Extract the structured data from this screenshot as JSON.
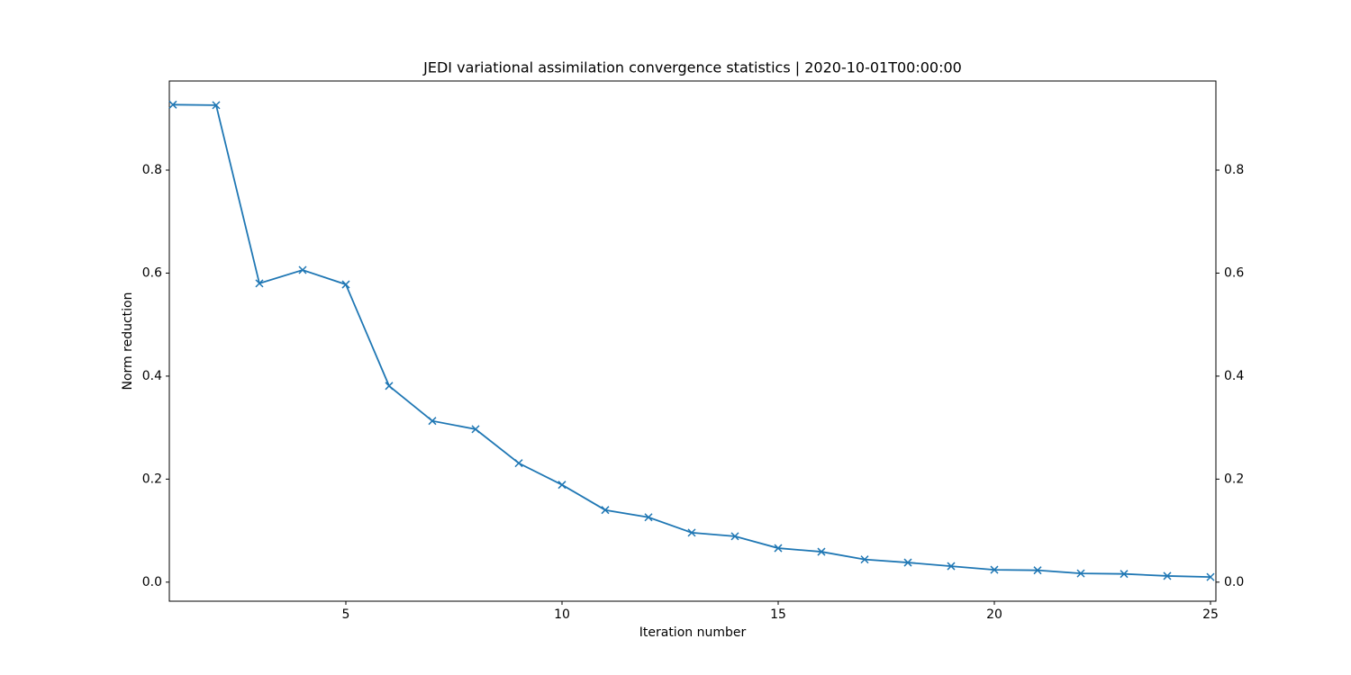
{
  "chart_data": {
    "type": "line",
    "title": "JEDI variational assimilation convergence statistics | 2020-10-01T00:00:00",
    "x_label": "Iteration number",
    "y_label": "Norm reduction",
    "x": [
      1,
      2,
      3,
      4,
      5,
      6,
      7,
      8,
      9,
      10,
      11,
      12,
      13,
      14,
      15,
      16,
      17,
      18,
      19,
      20,
      21,
      22,
      23,
      24,
      25
    ],
    "series": [
      {
        "color": "#1f77b4",
        "marker": "x",
        "values": [
          0.927,
          0.926,
          0.58,
          0.606,
          0.578,
          0.381,
          0.313,
          0.297,
          0.231,
          0.189,
          0.14,
          0.126,
          0.096,
          0.089,
          0.066,
          0.059,
          0.044,
          0.038,
          0.031,
          0.024,
          0.023,
          0.017,
          0.016,
          0.012,
          0.01
        ]
      }
    ],
    "xlim": [
      0.917,
      25.125
    ],
    "xticks": [
      5,
      10,
      15,
      20,
      25
    ],
    "ylim": [
      -0.037,
      0.973
    ],
    "yticks": [
      {
        "value": 0,
        "label": "0.0"
      },
      {
        "value": 0.2,
        "label": "0.2"
      },
      {
        "value": 0.4,
        "label": "0.4"
      },
      {
        "value": 0.6,
        "label": "0.6"
      },
      {
        "value": 0.8,
        "label": "0.8"
      }
    ],
    "y2lim": [
      -0.037,
      0.973
    ],
    "y2ticks": [
      {
        "value": 0,
        "label": "0.0"
      },
      {
        "value": 0.2,
        "label": "0.2"
      },
      {
        "value": 0.4,
        "label": "0.4"
      },
      {
        "value": 0.6,
        "label": "0.6"
      },
      {
        "value": 0.8,
        "label": "0.8"
      }
    ],
    "grid": false
  }
}
